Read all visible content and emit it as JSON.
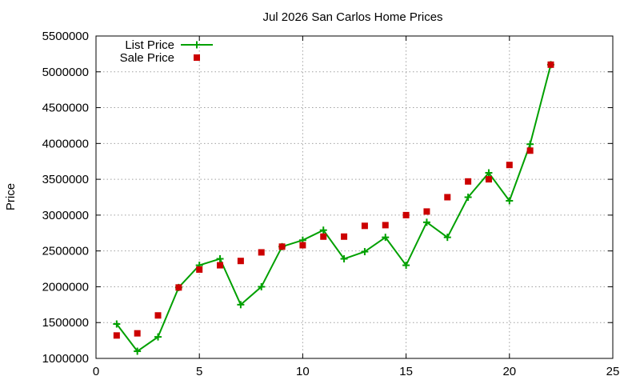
{
  "chart_data": {
    "type": "line",
    "title": "Jul 2026 San Carlos Home Prices",
    "xlabel": "",
    "ylabel": "Price",
    "xlim": [
      0,
      25
    ],
    "ylim": [
      1000000,
      5500000
    ],
    "x_ticks": [
      0,
      5,
      10,
      15,
      20,
      25
    ],
    "y_ticks": [
      1000000,
      1500000,
      2000000,
      2500000,
      3000000,
      3500000,
      4000000,
      4500000,
      5000000,
      5500000
    ],
    "grid": true,
    "legend_position": "top-left",
    "series": [
      {
        "name": "List Price",
        "kind": "line-with-plus-markers",
        "color": "#00a000",
        "points": [
          [
            1,
            1480000
          ],
          [
            2,
            1100000
          ],
          [
            3,
            1300000
          ],
          [
            4,
            1990000
          ],
          [
            5,
            2300000
          ],
          [
            6,
            2390000
          ],
          [
            7,
            1750000
          ],
          [
            8,
            2000000
          ],
          [
            9,
            2560000
          ],
          [
            10,
            2650000
          ],
          [
            11,
            2790000
          ],
          [
            12,
            2390000
          ],
          [
            13,
            2490000
          ],
          [
            14,
            2690000
          ],
          [
            15,
            2300000
          ],
          [
            16,
            2900000
          ],
          [
            17,
            2690000
          ],
          [
            18,
            3250000
          ],
          [
            19,
            3590000
          ],
          [
            20,
            3200000
          ],
          [
            21,
            3990000
          ],
          [
            22,
            5100000
          ]
        ]
      },
      {
        "name": "Sale Price",
        "kind": "square-markers",
        "color": "#cc0000",
        "points": [
          [
            1,
            1320000
          ],
          [
            2,
            1350000
          ],
          [
            3,
            1600000
          ],
          [
            4,
            1990000
          ],
          [
            5,
            2240000
          ],
          [
            6,
            2300000
          ],
          [
            7,
            2360000
          ],
          [
            8,
            2480000
          ],
          [
            9,
            2560000
          ],
          [
            10,
            2580000
          ],
          [
            11,
            2700000
          ],
          [
            12,
            2700000
          ],
          [
            13,
            2850000
          ],
          [
            14,
            2860000
          ],
          [
            15,
            3000000
          ],
          [
            16,
            3050000
          ],
          [
            17,
            3250000
          ],
          [
            18,
            3470000
          ],
          [
            19,
            3500000
          ],
          [
            20,
            3700000
          ],
          [
            21,
            3900000
          ],
          [
            22,
            5100000
          ]
        ]
      }
    ]
  }
}
